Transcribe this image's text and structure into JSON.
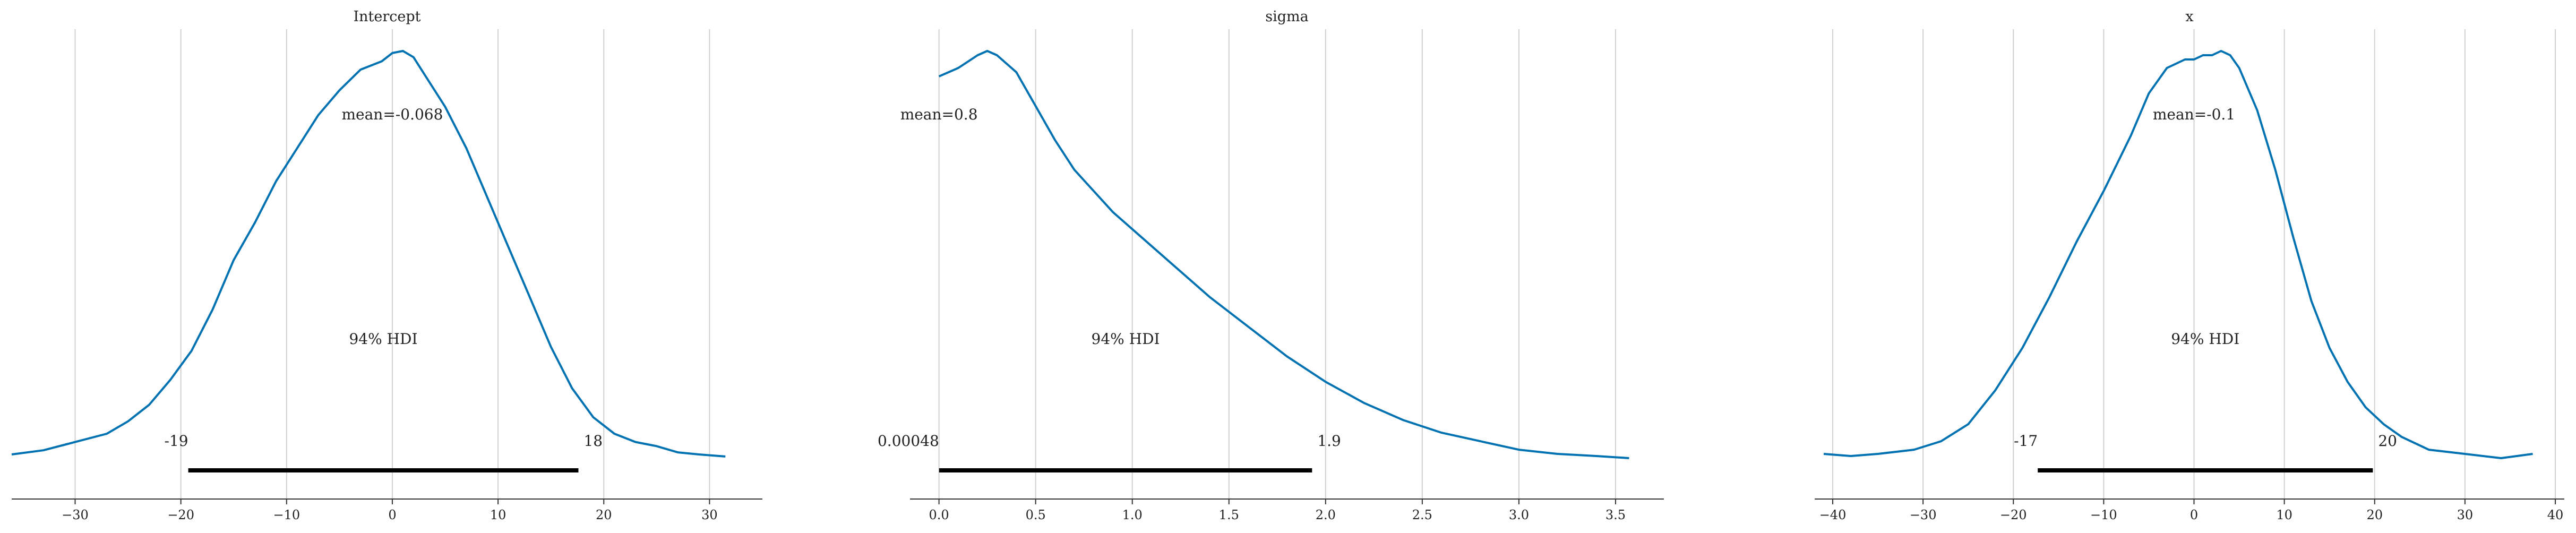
{
  "colors": {
    "density": "#0072b2",
    "hdi_bar": "#000000",
    "grid": "#d0d0d0"
  },
  "chart_data": [
    {
      "type": "line",
      "title": "Intercept",
      "xlim": [
        -36,
        35
      ],
      "ticks": [
        -30,
        -20,
        -10,
        0,
        10,
        20,
        30
      ],
      "tick_labels": [
        "−30",
        "−20",
        "−10",
        "0",
        "10",
        "20",
        "30"
      ],
      "grid": true,
      "mean_label": "mean=-0.068",
      "hdi_text": "94% HDI",
      "hdi": [
        -19.3,
        17.6
      ],
      "hdi_low_label": "-19",
      "hdi_high_label": "18",
      "density": {
        "x": [
          -36,
          -33,
          -30,
          -27,
          -25,
          -23,
          -21,
          -19,
          -17,
          -15,
          -13,
          -11,
          -9,
          -7,
          -5,
          -3,
          -1,
          0,
          1,
          2,
          3,
          5,
          7,
          9,
          11,
          13,
          15,
          17,
          19,
          21,
          23,
          25,
          27,
          29,
          31.5
        ],
        "y": [
          0.05,
          0.06,
          0.08,
          0.1,
          0.13,
          0.17,
          0.23,
          0.3,
          0.4,
          0.52,
          0.61,
          0.71,
          0.79,
          0.87,
          0.93,
          0.98,
          1.0,
          1.02,
          1.025,
          1.01,
          0.97,
          0.89,
          0.79,
          0.67,
          0.55,
          0.43,
          0.31,
          0.21,
          0.14,
          0.1,
          0.08,
          0.07,
          0.055,
          0.05,
          0.045
        ]
      }
    },
    {
      "type": "line",
      "title": "sigma",
      "xlim": [
        -0.15,
        3.75
      ],
      "ticks": [
        0.0,
        0.5,
        1.0,
        1.5,
        2.0,
        2.5,
        3.0,
        3.5
      ],
      "tick_labels": [
        "0.0",
        "0.5",
        "1.0",
        "1.5",
        "2.0",
        "2.5",
        "3.0",
        "3.5"
      ],
      "grid": true,
      "mean_label": "mean=0.8",
      "hdi_text": "94% HDI",
      "hdi": [
        0.00048,
        1.93
      ],
      "hdi_low_label": "0.00048",
      "hdi_high_label": "1.9",
      "density": {
        "x": [
          0.0,
          0.1,
          0.2,
          0.25,
          0.3,
          0.4,
          0.5,
          0.6,
          0.7,
          0.8,
          0.9,
          1.0,
          1.2,
          1.4,
          1.6,
          1.8,
          2.0,
          2.2,
          2.4,
          2.6,
          2.8,
          3.0,
          3.2,
          3.4,
          3.57
        ],
        "y": [
          0.94,
          0.96,
          0.99,
          1.0,
          0.99,
          0.95,
          0.87,
          0.79,
          0.72,
          0.67,
          0.62,
          0.58,
          0.5,
          0.42,
          0.35,
          0.28,
          0.22,
          0.17,
          0.13,
          0.1,
          0.08,
          0.06,
          0.05,
          0.045,
          0.04
        ]
      }
    },
    {
      "type": "line",
      "title": "x",
      "xlim": [
        -42,
        41
      ],
      "ticks": [
        -40,
        -30,
        -20,
        -10,
        0,
        10,
        20,
        30,
        40
      ],
      "tick_labels": [
        "−40",
        "−30",
        "−20",
        "−10",
        "0",
        "10",
        "20",
        "30",
        "40"
      ],
      "grid": true,
      "mean_label": "mean=-0.1",
      "hdi_text": "94% HDI",
      "hdi": [
        -17.3,
        19.8
      ],
      "hdi_low_label": "-17",
      "hdi_high_label": "20",
      "density": {
        "x": [
          -41,
          -38,
          -35,
          -31,
          -28,
          -25,
          -22,
          -19,
          -16,
          -13,
          -10,
          -7,
          -5,
          -3,
          -1,
          0,
          1,
          2,
          3,
          4,
          5,
          7,
          9,
          11,
          13,
          15,
          17,
          19,
          21,
          23,
          26,
          30,
          34,
          37.5
        ],
        "y": [
          0.05,
          0.045,
          0.05,
          0.06,
          0.08,
          0.12,
          0.2,
          0.3,
          0.42,
          0.55,
          0.67,
          0.8,
          0.9,
          0.96,
          0.98,
          0.98,
          0.99,
          0.99,
          1.0,
          0.99,
          0.96,
          0.86,
          0.72,
          0.56,
          0.41,
          0.3,
          0.22,
          0.16,
          0.12,
          0.09,
          0.06,
          0.05,
          0.04,
          0.05
        ]
      }
    }
  ]
}
